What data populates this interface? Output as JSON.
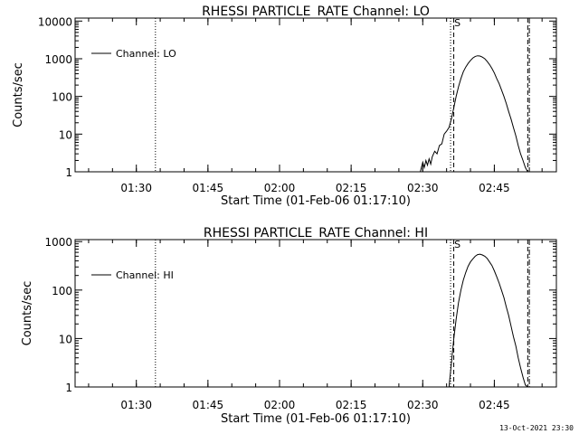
{
  "footer": {
    "timestamp": "13-Oct-2021 23:30"
  },
  "chart_data": [
    {
      "type": "line",
      "title": "RHESSI PARTICLE_RATE Channel: LO",
      "xlabel": "Start Time (01-Feb-06 01:17:10)",
      "ylabel": "Counts/sec",
      "yscale": "log",
      "ylim": [
        1,
        12000
      ],
      "xlim": [
        "01:17:10",
        "02:58:00"
      ],
      "xticks": [
        "01:30",
        "01:45",
        "02:00",
        "02:15",
        "02:30",
        "02:45"
      ],
      "yticks": [
        "1",
        "10",
        "100",
        "1000",
        "10000"
      ],
      "legend": {
        "position": "top-left",
        "entries": [
          "Channel: LO"
        ]
      },
      "vlines": [
        {
          "x": "01:34:00",
          "style": "dotted"
        },
        {
          "x": "02:35:50",
          "style": "dotted"
        },
        {
          "x": "02:36:30",
          "style": "dashed"
        },
        {
          "x": "02:52:00",
          "style": "dashed"
        },
        {
          "x": "02:52:20",
          "style": "dash-dot"
        }
      ],
      "marker": {
        "label": "S",
        "x": "02:36:30"
      },
      "series": [
        {
          "name": "Channel: LO",
          "x": [
            "02:29:30",
            "02:30:00",
            "02:30:20",
            "02:30:40",
            "02:31:00",
            "02:31:20",
            "02:31:40",
            "02:32:00",
            "02:32:30",
            "02:33:00",
            "02:33:30",
            "02:34:00",
            "02:34:30",
            "02:35:00",
            "02:35:30",
            "02:36:00",
            "02:36:30",
            "02:37:00",
            "02:37:30",
            "02:38:00",
            "02:38:30",
            "02:39:00",
            "02:39:30",
            "02:40:00",
            "02:40:30",
            "02:41:00",
            "02:41:30",
            "02:42:00",
            "02:42:30",
            "02:43:00",
            "02:43:30",
            "02:44:00",
            "02:44:30",
            "02:45:00",
            "02:45:30",
            "02:46:00",
            "02:46:30",
            "02:47:00",
            "02:47:30",
            "02:48:00",
            "02:48:30",
            "02:49:00",
            "02:49:30",
            "02:50:00",
            "02:50:30",
            "02:51:00",
            "02:51:30",
            "02:52:00"
          ],
          "y": [
            1,
            1.8,
            1.3,
            2,
            1.5,
            2.2,
            1.6,
            2.5,
            3.5,
            3,
            5,
            5.5,
            10,
            12,
            15,
            25,
            50,
            100,
            180,
            300,
            450,
            600,
            750,
            900,
            1050,
            1150,
            1200,
            1180,
            1100,
            1000,
            850,
            700,
            550,
            420,
            300,
            220,
            150,
            100,
            65,
            40,
            25,
            15,
            9,
            5,
            3,
            2,
            1.3,
            1
          ]
        }
      ]
    },
    {
      "type": "line",
      "title": "RHESSI PARTICLE_RATE Channel: HI",
      "xlabel": "Start Time (01-Feb-06 01:17:10)",
      "ylabel": "Counts/sec",
      "yscale": "log",
      "ylim": [
        1,
        1100
      ],
      "xlim": [
        "01:17:10",
        "02:58:00"
      ],
      "xticks": [
        "01:30",
        "01:45",
        "02:00",
        "02:15",
        "02:30",
        "02:45"
      ],
      "yticks": [
        "1",
        "10",
        "100",
        "1000"
      ],
      "legend": {
        "position": "top-left",
        "entries": [
          "Channel: HI"
        ]
      },
      "vlines": [
        {
          "x": "01:34:00",
          "style": "dotted"
        },
        {
          "x": "02:35:50",
          "style": "dotted"
        },
        {
          "x": "02:36:30",
          "style": "dashed"
        },
        {
          "x": "02:52:00",
          "style": "dashed"
        },
        {
          "x": "02:52:20",
          "style": "dash-dot"
        }
      ],
      "marker": {
        "label": "S",
        "x": "02:36:30"
      },
      "series": [
        {
          "name": "Channel: HI",
          "x": [
            "02:35:30",
            "02:36:00",
            "02:36:30",
            "02:37:00",
            "02:37:30",
            "02:38:00",
            "02:38:30",
            "02:39:00",
            "02:39:30",
            "02:40:00",
            "02:40:30",
            "02:41:00",
            "02:41:30",
            "02:42:00",
            "02:42:30",
            "02:43:00",
            "02:43:30",
            "02:44:00",
            "02:44:30",
            "02:45:00",
            "02:45:30",
            "02:46:00",
            "02:46:30",
            "02:47:00",
            "02:47:30",
            "02:48:00",
            "02:48:30",
            "02:49:00",
            "02:49:30",
            "02:50:00",
            "02:50:30",
            "02:51:00",
            "02:51:30",
            "02:52:00"
          ],
          "y": [
            1,
            3,
            10,
            25,
            55,
            100,
            160,
            230,
            310,
            380,
            440,
            500,
            540,
            550,
            530,
            500,
            450,
            380,
            320,
            250,
            190,
            140,
            100,
            70,
            45,
            30,
            18,
            11,
            7,
            4,
            2.5,
            1.6,
            1.1,
            1
          ]
        }
      ]
    }
  ]
}
